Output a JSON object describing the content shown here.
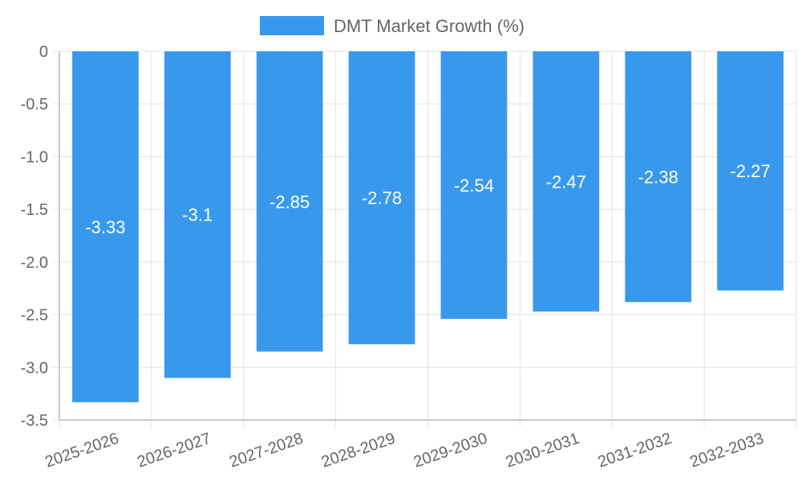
{
  "chart_data": {
    "type": "bar",
    "legend": {
      "label": "DMT Market Growth (%)",
      "position": "top"
    },
    "categories": [
      "2025-2026",
      "2026-2027",
      "2027-2028",
      "2028-2029",
      "2029-2030",
      "2030-2031",
      "2031-2032",
      "2032-2033"
    ],
    "series": [
      {
        "name": "DMT Market Growth (%)",
        "values": [
          -3.33,
          -3.1,
          -2.85,
          -2.78,
          -2.54,
          -2.47,
          -2.38,
          -2.27
        ],
        "color": "#3899ec",
        "data_labels": [
          "-3.33",
          "-3.1",
          "-2.85",
          "-2.78",
          "-2.54",
          "-2.47",
          "-2.38",
          "-2.27"
        ]
      }
    ],
    "y_ticks": [
      "0",
      "-0.5",
      "-1.0",
      "-1.5",
      "-2.0",
      "-2.5",
      "-3.0",
      "-3.5"
    ],
    "y_tick_values": [
      0,
      -0.5,
      -1.0,
      -1.5,
      -2.0,
      -2.5,
      -3.0,
      -3.5
    ],
    "ylim": [
      -3.5,
      0
    ],
    "grid": true,
    "title": "",
    "xlabel": "",
    "ylabel": ""
  }
}
